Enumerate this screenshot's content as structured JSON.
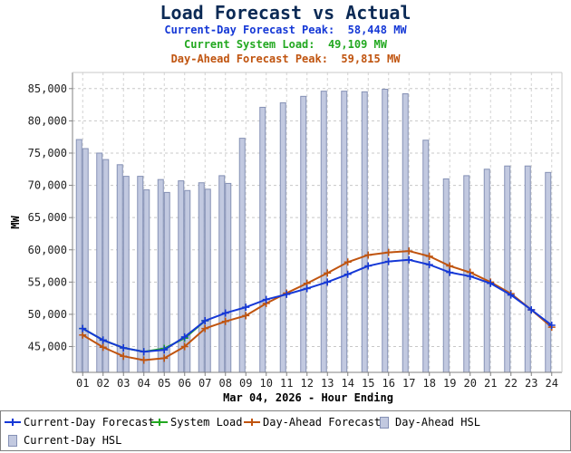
{
  "title": "Load Forecast vs Actual",
  "subtitles": [
    {
      "text": "Current-Day Forecast Peak:  58,448 MW",
      "color": "#1538d6"
    },
    {
      "text": "Current System Load:  49,109 MW",
      "color": "#22a820"
    },
    {
      "text": "Day-Ahead Forecast Peak:  59,815 MW",
      "color": "#c0540f"
    }
  ],
  "chart_data": {
    "type": "bar+line",
    "xlabel": "Mar 04, 2026 - Hour Ending",
    "ylabel": "MW",
    "ylim": [
      41000,
      87500
    ],
    "yticks": [
      45000,
      50000,
      55000,
      60000,
      65000,
      70000,
      75000,
      80000,
      85000
    ],
    "ytick_labels": [
      "45,000",
      "50,000",
      "55,000",
      "60,000",
      "65,000",
      "70,000",
      "75,000",
      "80,000",
      "85,000"
    ],
    "categories": [
      "01",
      "02",
      "03",
      "04",
      "05",
      "06",
      "07",
      "08",
      "09",
      "10",
      "11",
      "12",
      "13",
      "14",
      "15",
      "16",
      "17",
      "18",
      "19",
      "20",
      "21",
      "22",
      "23",
      "24"
    ],
    "grid": true,
    "legend_position": "bottom",
    "bars": [
      {
        "name": "Day-Ahead HSL",
        "color": "#c2c9e0",
        "values": [
          77100,
          75000,
          73200,
          71400,
          70900,
          70700,
          70400,
          71500,
          77300,
          82100,
          82800,
          83800,
          84600,
          84600,
          84500,
          84900,
          84200,
          77000,
          71000,
          71500,
          72500,
          73000,
          73000,
          72000
        ]
      },
      {
        "name": "Current-Day HSL",
        "color": "#c2c9e0",
        "values": [
          75700,
          74000,
          71400,
          69300,
          68900,
          69200,
          69400,
          70300,
          null,
          null,
          null,
          null,
          null,
          null,
          null,
          null,
          null,
          null,
          null,
          null,
          null,
          null,
          null,
          null
        ]
      }
    ],
    "series": [
      {
        "name": "Current-Day Forecast",
        "color": "#1538d6",
        "values": [
          47800,
          46000,
          44800,
          44200,
          44500,
          46500,
          49000,
          50200,
          51100,
          52300,
          53100,
          54000,
          55000,
          56200,
          57500,
          58200,
          58448,
          57700,
          56500,
          55900,
          54800,
          53000,
          50700,
          48300
        ]
      },
      {
        "name": "System Load",
        "color": "#22a820",
        "values": [
          47800,
          46000,
          44800,
          44200,
          44700,
          46300,
          49000,
          null,
          null,
          null,
          null,
          null,
          null,
          null,
          null,
          null,
          null,
          null,
          null,
          null,
          null,
          null,
          null,
          null
        ]
      },
      {
        "name": "Day-Ahead Forecast",
        "color": "#c0540f",
        "values": [
          46800,
          44900,
          43500,
          42900,
          43200,
          45000,
          47800,
          48900,
          49800,
          51700,
          53300,
          54800,
          56400,
          58100,
          59200,
          59600,
          59815,
          59000,
          57500,
          56500,
          55000,
          53200,
          50700,
          48000
        ]
      }
    ]
  },
  "legend": {
    "items": [
      {
        "label": "Current-Day Forecast",
        "kind": "line",
        "color": "#1538d6"
      },
      {
        "label": "System Load",
        "kind": "line",
        "color": "#22a820"
      },
      {
        "label": "Day-Ahead Forecast",
        "kind": "line",
        "color": "#c0540f"
      },
      {
        "label": "Day-Ahead HSL",
        "kind": "box",
        "color": "#c2c9e0"
      },
      {
        "label": "Current-Day HSL",
        "kind": "box",
        "color": "#c2c9e0"
      }
    ]
  }
}
